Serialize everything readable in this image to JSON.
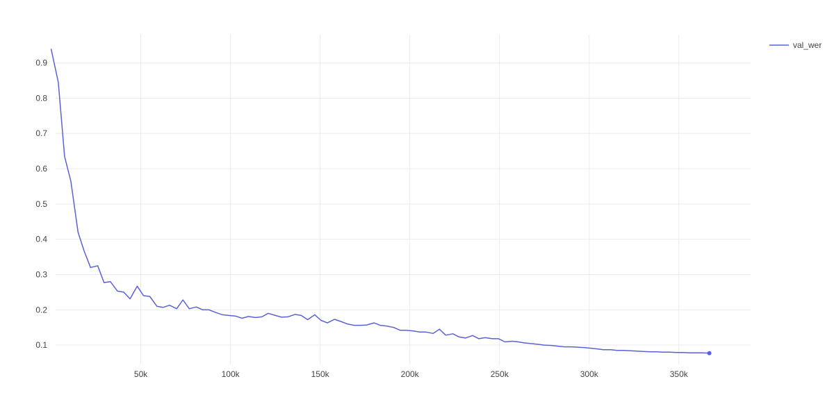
{
  "chart_data": {
    "type": "line",
    "title": "",
    "xlabel": "",
    "ylabel": "",
    "xlim": [
      2500,
      390000
    ],
    "ylim": [
      0.045,
      0.98
    ],
    "x_ticks": [
      50000,
      100000,
      150000,
      200000,
      250000,
      300000,
      350000
    ],
    "x_tick_labels": [
      "50k",
      "100k",
      "150k",
      "200k",
      "250k",
      "300k",
      "350k"
    ],
    "y_ticks": [
      0.1,
      0.2,
      0.3,
      0.4,
      0.5,
      0.6,
      0.7,
      0.8,
      0.9
    ],
    "y_tick_labels": [
      "0.1",
      "0.2",
      "0.3",
      "0.4",
      "0.5",
      "0.6",
      "0.7",
      "0.8",
      "0.9"
    ],
    "grid": true,
    "legend_position": "top-right",
    "series": [
      {
        "name": "val_wer",
        "color": "#5a61d6",
        "x": [
          0,
          4000,
          7500,
          11000,
          15000,
          18500,
          22000,
          26000,
          29500,
          33000,
          37000,
          40500,
          44000,
          48000,
          51500,
          55000,
          59000,
          62500,
          66000,
          70000,
          73500,
          77000,
          81000,
          84500,
          88000,
          92000,
          95500,
          99000,
          103000,
          106500,
          110000,
          114000,
          117500,
          121000,
          125000,
          128500,
          132000,
          136000,
          139500,
          143000,
          147000,
          150500,
          154000,
          158000,
          161500,
          165000,
          169000,
          172500,
          176000,
          180000,
          183500,
          187000,
          191000,
          194500,
          198000,
          202000,
          205500,
          209000,
          213000,
          216500,
          220000,
          224000,
          227500,
          231000,
          235000,
          238500,
          242000,
          246000,
          249500,
          253000,
          257000,
          260500,
          264000,
          268000,
          271500,
          275000,
          279000,
          282500,
          286000,
          290000,
          293500,
          297000,
          301000,
          304500,
          308000,
          312000,
          315500,
          319000,
          323000,
          326500,
          330000,
          334000,
          337500,
          341000,
          345000,
          348500,
          352000,
          356000,
          359500,
          363000,
          367000
        ],
        "values": [
          0.94,
          0.845,
          0.635,
          0.565,
          0.42,
          0.365,
          0.32,
          0.325,
          0.277,
          0.28,
          0.253,
          0.25,
          0.231,
          0.267,
          0.24,
          0.238,
          0.21,
          0.207,
          0.213,
          0.203,
          0.228,
          0.203,
          0.208,
          0.2,
          0.2,
          0.192,
          0.186,
          0.184,
          0.182,
          0.176,
          0.181,
          0.178,
          0.18,
          0.19,
          0.184,
          0.179,
          0.18,
          0.187,
          0.184,
          0.172,
          0.186,
          0.17,
          0.163,
          0.173,
          0.167,
          0.16,
          0.156,
          0.156,
          0.157,
          0.163,
          0.156,
          0.154,
          0.15,
          0.142,
          0.142,
          0.14,
          0.137,
          0.137,
          0.133,
          0.145,
          0.128,
          0.132,
          0.123,
          0.12,
          0.127,
          0.118,
          0.121,
          0.118,
          0.118,
          0.109,
          0.111,
          0.109,
          0.106,
          0.104,
          0.102,
          0.1,
          0.099,
          0.097,
          0.095,
          0.095,
          0.094,
          0.093,
          0.091,
          0.089,
          0.087,
          0.087,
          0.085,
          0.085,
          0.084,
          0.083,
          0.082,
          0.081,
          0.081,
          0.08,
          0.08,
          0.079,
          0.079,
          0.078,
          0.078,
          0.078,
          0.077
        ]
      }
    ]
  }
}
